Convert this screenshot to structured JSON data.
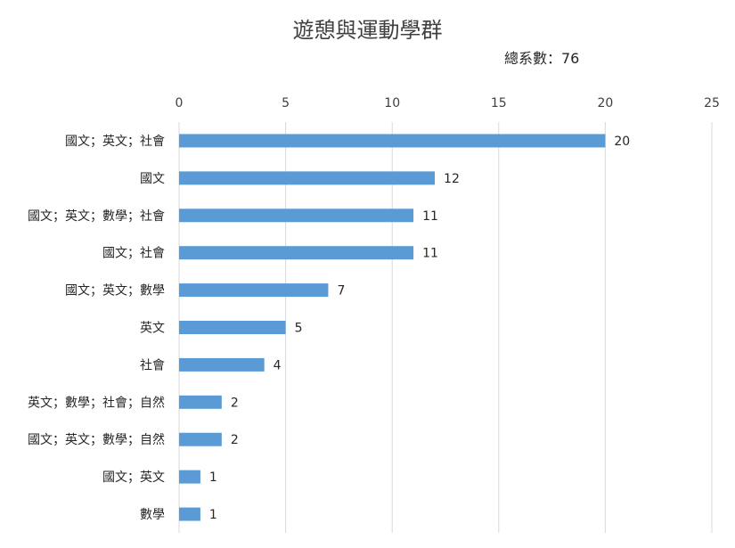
{
  "chart_data": {
    "type": "bar",
    "orientation": "horizontal",
    "title": "遊憩與運動學群",
    "subtitle": "總系數：76",
    "categories": [
      "國文；英文；社會",
      "國文",
      "國文；英文；數學；社會",
      "國文；社會",
      "國文；英文；數學",
      "英文",
      "社會",
      "英文；數學；社會；自然",
      "國文；英文；數學；自然",
      "國文；英文",
      "數學"
    ],
    "values": [
      20,
      12,
      11,
      11,
      7,
      5,
      4,
      2,
      2,
      1,
      1
    ],
    "xlim": [
      0,
      25
    ],
    "xticks": [
      0,
      5,
      10,
      15,
      20,
      25
    ],
    "xlabel": "",
    "ylabel": "",
    "grid": true,
    "bar_color": "#5b9bd5",
    "grid_color": "#d9d9d9",
    "data_labels": true
  }
}
